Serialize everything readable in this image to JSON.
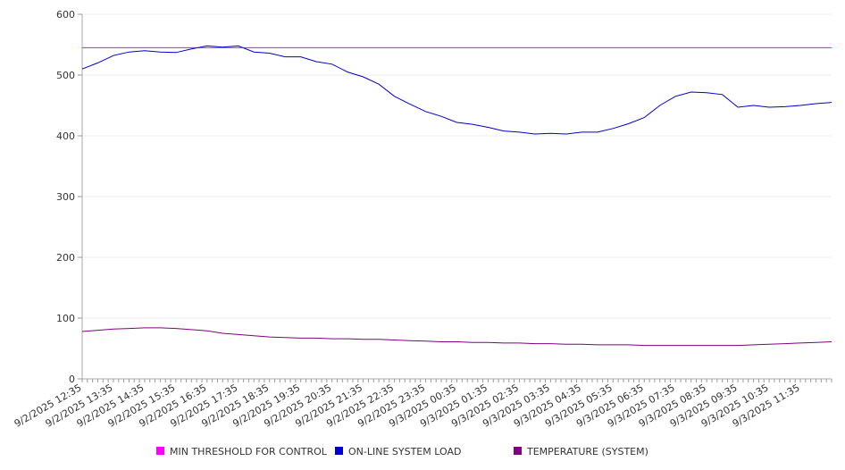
{
  "chart_data": {
    "type": "line",
    "title": "",
    "xlabel": "",
    "ylabel": "",
    "ylim": [
      0,
      600
    ],
    "yticks": [
      "0",
      "100",
      "200",
      "300",
      "400",
      "500",
      "600"
    ],
    "grid": true,
    "legend_position": "bottom",
    "x_tick_labels": [
      "9/2/2025 12:35",
      "9/2/2025 13:35",
      "9/2/2025 14:35",
      "9/2/2025 15:35",
      "9/2/2025 16:35",
      "9/2/2025 17:35",
      "9/2/2025 18:35",
      "9/2/2025 19:35",
      "9/2/2025 20:35",
      "9/2/2025 21:35",
      "9/2/2025 22:35",
      "9/2/2025 23:35",
      "9/3/2025 00:35",
      "9/3/2025 01:35",
      "9/3/2025 02:35",
      "9/3/2025 03:35",
      "9/3/2025 04:35",
      "9/3/2025 05:35",
      "9/3/2025 06:35",
      "9/3/2025 07:35",
      "9/3/2025 08:35",
      "9/3/2025 09:35",
      "9/3/2025 10:35",
      "9/3/2025 11:35"
    ],
    "x_hours": [
      0,
      0.5,
      1,
      1.5,
      2,
      2.5,
      3,
      3.5,
      4,
      4.5,
      5,
      5.5,
      6,
      6.5,
      7,
      7.5,
      8,
      8.5,
      9,
      9.5,
      10,
      10.5,
      11,
      11.5,
      12,
      12.5,
      13,
      13.5,
      14,
      14.5,
      15,
      15.5,
      16,
      16.5,
      17,
      17.5,
      18,
      18.5,
      19,
      19.5,
      20,
      20.5,
      21,
      21.5,
      22,
      22.5,
      23,
      23.5,
      24
    ],
    "series": [
      {
        "name": "MIN THRESHOLD FOR CONTROL",
        "color": "#ff00ff",
        "values": [
          545,
          545,
          545,
          545,
          545,
          545,
          545,
          545,
          545,
          545,
          545,
          545,
          545,
          545,
          545,
          545,
          545,
          545,
          545,
          545,
          545,
          545,
          545,
          545,
          545,
          545,
          545,
          545,
          545,
          545,
          545,
          545,
          545,
          545,
          545,
          545,
          545,
          545,
          545,
          545,
          545,
          545,
          545,
          545,
          545,
          545,
          545,
          545,
          545
        ]
      },
      {
        "name": "ON-LINE SYSTEM LOAD",
        "color": "#0000cc",
        "values": [
          510,
          520,
          532,
          538,
          540,
          538,
          537,
          543,
          548,
          546,
          548,
          538,
          536,
          530,
          530,
          522,
          518,
          505,
          497,
          485,
          465,
          452,
          440,
          432,
          422,
          419,
          414,
          408,
          406,
          403,
          404,
          403,
          406,
          406,
          412,
          420,
          430,
          450,
          465,
          472,
          471,
          468,
          447,
          450,
          447,
          448,
          450,
          453,
          455
        ]
      },
      {
        "name": "TEMPERATURE (SYSTEM)",
        "color": "#800080",
        "values": [
          78,
          80,
          82,
          83,
          84,
          84,
          83,
          81,
          79,
          75,
          73,
          71,
          69,
          68,
          67,
          67,
          66,
          66,
          65,
          65,
          64,
          63,
          62,
          61,
          61,
          60,
          60,
          59,
          59,
          58,
          58,
          57,
          57,
          56,
          56,
          56,
          55,
          55,
          55,
          55,
          55,
          55,
          55,
          56,
          57,
          58,
          59,
          60,
          61
        ]
      }
    ]
  }
}
